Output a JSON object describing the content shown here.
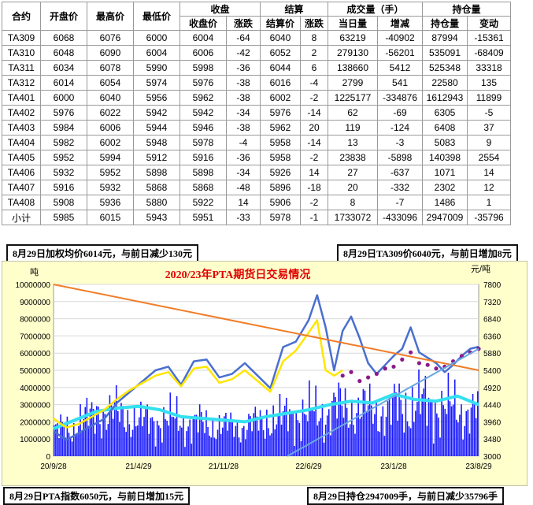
{
  "table": {
    "headers_top": {
      "contract": "合约",
      "open": "开盘价",
      "high": "最高价",
      "low": "最低价",
      "close_group": "收盘",
      "settle_group": "结算",
      "volume_group": "成交量（手）",
      "oi_group": "持仓量"
    },
    "headers_sub": {
      "close": "收盘价",
      "close_chg": "涨跌",
      "settle": "结算价",
      "settle_chg": "涨跌",
      "vol_today": "当日量",
      "vol_chg": "增减",
      "oi": "持仓量",
      "oi_chg": "变动"
    },
    "rows": [
      {
        "c": "TA309",
        "o": "6068",
        "h": "6076",
        "l": "6000",
        "cl": "6004",
        "clc": "-64",
        "s": "6040",
        "sc": "8",
        "v": "63219",
        "vc": "-40902",
        "oi": "87994",
        "oic": "-15361"
      },
      {
        "c": "TA310",
        "o": "6048",
        "h": "6090",
        "l": "6004",
        "cl": "6006",
        "clc": "-42",
        "s": "6052",
        "sc": "2",
        "v": "279130",
        "vc": "-56201",
        "oi": "535091",
        "oic": "-68409"
      },
      {
        "c": "TA311",
        "o": "6034",
        "h": "6078",
        "l": "5990",
        "cl": "5998",
        "clc": "-36",
        "s": "6044",
        "sc": "6",
        "v": "138660",
        "vc": "5412",
        "oi": "525348",
        "oic": "33318"
      },
      {
        "c": "TA312",
        "o": "6014",
        "h": "6054",
        "l": "5974",
        "cl": "5976",
        "clc": "-38",
        "s": "6016",
        "sc": "-4",
        "v": "2799",
        "vc": "541",
        "oi": "22580",
        "oic": "135"
      },
      {
        "c": "TA401",
        "o": "6000",
        "h": "6040",
        "l": "5956",
        "cl": "5962",
        "clc": "-38",
        "s": "6002",
        "sc": "-2",
        "v": "1225177",
        "vc": "-334876",
        "oi": "1612943",
        "oic": "11899"
      },
      {
        "c": "TA402",
        "o": "5976",
        "h": "6022",
        "l": "5942",
        "cl": "5942",
        "clc": "-34",
        "s": "5976",
        "sc": "-14",
        "v": "62",
        "vc": "-69",
        "oi": "6305",
        "oic": "-5"
      },
      {
        "c": "TA403",
        "o": "5984",
        "h": "6006",
        "l": "5944",
        "cl": "5946",
        "clc": "-38",
        "s": "5962",
        "sc": "20",
        "v": "119",
        "vc": "-124",
        "oi": "6408",
        "oic": "37"
      },
      {
        "c": "TA404",
        "o": "5982",
        "h": "6002",
        "l": "5948",
        "cl": "5978",
        "clc": "-4",
        "s": "5958",
        "sc": "-14",
        "v": "13",
        "vc": "-3",
        "oi": "5083",
        "oic": "9"
      },
      {
        "c": "TA405",
        "o": "5952",
        "h": "5994",
        "l": "5912",
        "cl": "5916",
        "clc": "-36",
        "s": "5958",
        "sc": "-2",
        "v": "23838",
        "vc": "-5898",
        "oi": "140398",
        "oic": "2554"
      },
      {
        "c": "TA406",
        "o": "5932",
        "h": "5952",
        "l": "5898",
        "cl": "5898",
        "clc": "-34",
        "s": "5926",
        "sc": "14",
        "v": "27",
        "vc": "-637",
        "oi": "1071",
        "oic": "14"
      },
      {
        "c": "TA407",
        "o": "5916",
        "h": "5932",
        "l": "5868",
        "cl": "5868",
        "clc": "-48",
        "s": "5896",
        "sc": "-18",
        "v": "20",
        "vc": "-332",
        "oi": "2302",
        "oic": "12"
      },
      {
        "c": "TA408",
        "o": "5908",
        "h": "5936",
        "l": "5880",
        "cl": "5922",
        "clc": "14",
        "s": "5906",
        "sc": "-2",
        "v": "8",
        "vc": "-7",
        "oi": "1486",
        "oic": "1"
      },
      {
        "c": "小计",
        "o": "5985",
        "h": "6015",
        "l": "5943",
        "cl": "5951",
        "clc": "-33",
        "s": "5978",
        "sc": "-1",
        "v": "1733072",
        "vc": "-433096",
        "oi": "2947009",
        "oic": "-35796"
      }
    ]
  },
  "notes": {
    "top_left": "8月29日加权均价6014元，与前日减少130元",
    "top_right": "8月29日TA309价6040元，与前日增加8元",
    "bottom_left": "8月29日PTA指数6050元，与前日增加15元",
    "bottom_right": "8月29日持仓2947009手，与前日减少35796手"
  },
  "colors": {
    "red": "#e00000",
    "blue": "#0050c8",
    "chart_bg": "#ffffcc",
    "plot_bg": "#ffffff",
    "bars": "#1a1aff",
    "price_line": "#4a6fd0",
    "yellow_line": "#ffe600",
    "cyan_line": "#33e0f0",
    "purple_dots": "#8b1a8b",
    "orange_trend": "#f07d28",
    "blue_trend": "#6aa8e0"
  },
  "chart_data": {
    "type": "line",
    "title": "2020/23年PTA期货日交易情况",
    "ylabel_left": "吨",
    "ylabel_right": "元/吨",
    "left_ticks": [
      "0",
      "1000000",
      "2000000",
      "3000000",
      "4000000",
      "5000000",
      "6000000",
      "7000000",
      "8000000",
      "9000000",
      "10000000"
    ],
    "right_ticks": [
      "3000",
      "3480",
      "3960",
      "4440",
      "4920",
      "5400",
      "5880",
      "6360",
      "6840",
      "7320",
      "7800"
    ],
    "x_ticks": [
      "20/9/28",
      "21/4/29",
      "21/11/28",
      "22/6/29",
      "23/1/28",
      "23/8/29"
    ],
    "ylim_left": [
      0,
      10000000
    ],
    "ylim_right": [
      3000,
      7800
    ],
    "x_index_range": [
      0,
      100
    ],
    "price_series": {
      "name": "",
      "x": [
        0,
        3,
        6,
        9,
        12,
        15,
        18,
        21,
        24,
        27,
        30,
        33,
        36,
        39,
        42,
        45,
        48,
        51,
        54,
        57,
        60,
        62,
        64,
        66,
        68,
        70,
        72,
        74,
        76,
        78,
        80,
        82,
        84,
        86,
        88,
        90,
        92,
        94,
        96,
        98,
        100
      ],
      "y": [
        3700,
        3450,
        3650,
        3850,
        4050,
        4500,
        4800,
        5100,
        5400,
        5500,
        5000,
        5650,
        5700,
        5200,
        5300,
        5600,
        5250,
        4900,
        6050,
        6200,
        6800,
        7500,
        6600,
        5400,
        6500,
        6900,
        6300,
        5600,
        5300,
        5550,
        5800,
        6000,
        6600,
        5900,
        5750,
        5600,
        5350,
        5550,
        5800,
        6000,
        6060
      ]
    },
    "yellow_series": {
      "name": "",
      "x": [
        0,
        3,
        6,
        9,
        12,
        15,
        18,
        21,
        24,
        27,
        30,
        33,
        36,
        39,
        42,
        45,
        48,
        51,
        54,
        57,
        60,
        62,
        64,
        66,
        68
      ],
      "y": [
        4050,
        3800,
        3900,
        4100,
        4300,
        4600,
        4850,
        5050,
        5250,
        5350,
        4950,
        5450,
        5500,
        5050,
        5150,
        5400,
        5100,
        4800,
        5650,
        5950,
        6450,
        6800,
        5400,
        5250,
        5400
      ]
    },
    "purple_series": {
      "name": "",
      "x": [
        68,
        70,
        72,
        74,
        76,
        78,
        80,
        82,
        84,
        86,
        88,
        90,
        92,
        94,
        96,
        98,
        100
      ],
      "y": [
        5250,
        5350,
        5100,
        5200,
        5300,
        5450,
        5500,
        5700,
        5900,
        5600,
        5550,
        5450,
        5500,
        5650,
        5800,
        5900,
        6000
      ]
    },
    "open_interest_series": {
      "name": "",
      "x": [
        0,
        5,
        10,
        15,
        20,
        25,
        30,
        35,
        40,
        45,
        50,
        55,
        60,
        65,
        70,
        75,
        80,
        85,
        90,
        95,
        100
      ],
      "y": [
        1600000,
        2100000,
        2600000,
        2800000,
        2900000,
        2700000,
        2300000,
        2200000,
        2100000,
        2000000,
        2300000,
        2500000,
        2700000,
        3000000,
        3200000,
        3100000,
        3600000,
        3300000,
        3200000,
        3500000,
        3000000
      ]
    },
    "volume_bars_level": [
      1500000,
      2200000,
      2600000,
      2300000,
      2000000,
      2100000,
      1900000,
      1800000,
      1700000,
      1900000,
      2200000,
      2400000,
      2500000,
      2800000,
      2700000,
      2600000,
      2900000,
      3000000,
      2800000,
      2600000
    ],
    "trend_lines": [
      {
        "from_x": 0,
        "from_y_right": 7800,
        "to_x": 100,
        "to_y_right": 5400
      },
      {
        "from_x": 55,
        "from_y_right": 3000,
        "to_x": 100,
        "to_y_right": 6000
      }
    ],
    "grid": true
  }
}
